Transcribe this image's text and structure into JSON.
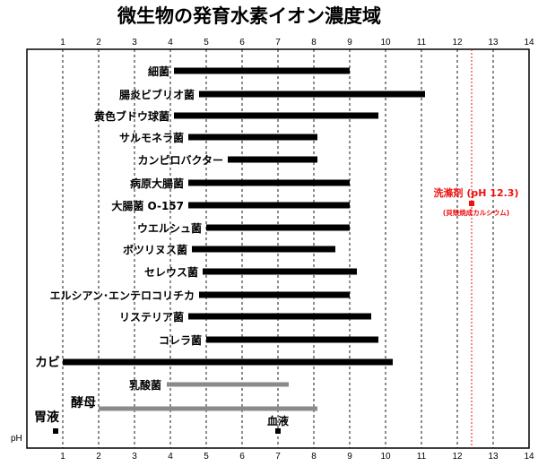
{
  "chart_data": {
    "type": "range-bar",
    "title": "微生物の発育水素イオン濃度域",
    "xlabel": "pH",
    "xlim": [
      0,
      14
    ],
    "ticks": [
      1,
      2,
      3,
      4,
      5,
      6,
      7,
      8,
      9,
      10,
      11,
      12,
      13,
      14
    ],
    "grid": true,
    "bars": [
      {
        "label": "細菌",
        "start": 4.1,
        "end": 9.0,
        "color": "#000000",
        "label_style": "normal"
      },
      {
        "label": "腸炎ビブリオ菌",
        "start": 4.8,
        "end": 11.1,
        "color": "#000000",
        "label_style": "normal"
      },
      {
        "label": "黄色ブドウ球菌",
        "start": 4.1,
        "end": 9.8,
        "color": "#000000",
        "label_style": "normal"
      },
      {
        "label": "サルモネラ菌",
        "start": 4.5,
        "end": 8.1,
        "color": "#000000",
        "label_style": "normal"
      },
      {
        "label": "カンピロバクター",
        "start": 5.6,
        "end": 8.1,
        "color": "#000000",
        "label_style": "normal"
      },
      {
        "label": "病原大腸菌",
        "start": 4.5,
        "end": 9.0,
        "color": "#000000",
        "label_style": "normal"
      },
      {
        "label": "大腸菌 O-157",
        "start": 4.5,
        "end": 9.0,
        "color": "#000000",
        "label_style": "normal"
      },
      {
        "label": "ウエルシュ菌",
        "start": 5.0,
        "end": 9.0,
        "color": "#000000",
        "label_style": "normal"
      },
      {
        "label": "ボツリヌス菌",
        "start": 4.6,
        "end": 8.6,
        "color": "#000000",
        "label_style": "normal"
      },
      {
        "label": "セレウス菌",
        "start": 4.9,
        "end": 9.2,
        "color": "#000000",
        "label_style": "normal"
      },
      {
        "label": "エルシアン･エンテロコリチカ",
        "start": 4.8,
        "end": 9.0,
        "color": "#000000",
        "label_style": "normal"
      },
      {
        "label": "リステリア菌",
        "start": 4.5,
        "end": 9.6,
        "color": "#000000",
        "label_style": "normal"
      },
      {
        "label": "コレラ菌",
        "start": 5.0,
        "end": 9.8,
        "color": "#000000",
        "label_style": "normal"
      },
      {
        "label": "カビ",
        "start": 1.0,
        "end": 10.2,
        "color": "#000000",
        "label_style": "big"
      },
      {
        "label": "乳酸菌",
        "start": 3.9,
        "end": 7.3,
        "color": "#8a8a8a",
        "label_style": "mid"
      },
      {
        "label": "酵母",
        "start": 2.0,
        "end": 8.1,
        "color": "#8a8a8a",
        "label_style": "big"
      }
    ],
    "points": [
      {
        "label": "胃液",
        "x": 0.8
      },
      {
        "label": "血液",
        "x": 7.0
      }
    ],
    "annotation": {
      "label": "洗滌剤 (pH 12.3)",
      "sublabel": "(貝殻焼成カルシウム)",
      "x": 12.4,
      "color": "#ee1111"
    }
  }
}
